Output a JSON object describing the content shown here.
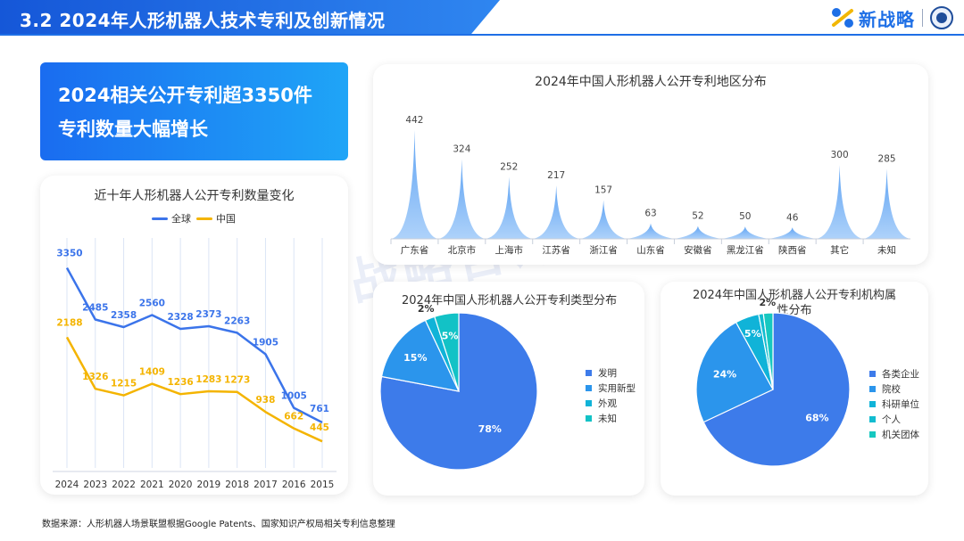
{
  "header": {
    "title": "3.2  2024年人形机器人技术专利及创新情况",
    "logo_text": "新战略"
  },
  "hero": {
    "line1": "2024相关公开专利超3350件",
    "line2": "专利数量大幅增长"
  },
  "watermark": "新战略咨询",
  "source": "数据来源：人形机器人场景联盟根据Google Patents、国家知识产权局相关专利信息整理",
  "colors": {
    "global": "#3b74ea",
    "china": "#f4b400",
    "peak": "#7fb5f5"
  },
  "chart_data": [
    {
      "type": "line",
      "title": "近十年人形机器人公开专利数量变化",
      "categories": [
        "2024",
        "2023",
        "2022",
        "2021",
        "2020",
        "2019",
        "2018",
        "2017",
        "2016",
        "2015"
      ],
      "series": [
        {
          "name": "全球",
          "values": [
            3350,
            2485,
            2358,
            2560,
            2328,
            2373,
            2263,
            1905,
            1005,
            761
          ]
        },
        {
          "name": "中国",
          "values": [
            2188,
            1326,
            1215,
            1409,
            1236,
            1283,
            1273,
            938,
            662,
            445
          ]
        }
      ],
      "ylim": [
        0,
        4000
      ],
      "legend": "top"
    },
    {
      "type": "area",
      "title": "2024年中国人形机器人公开专利地区分布",
      "categories": [
        "广东省",
        "北京市",
        "上海市",
        "江苏省",
        "浙江省",
        "山东省",
        "安徽省",
        "黑龙江省",
        "陕西省",
        "其它",
        "未知"
      ],
      "values": [
        442,
        324,
        252,
        217,
        157,
        63,
        52,
        50,
        46,
        300,
        285
      ],
      "ylim": [
        0,
        500
      ]
    },
    {
      "type": "pie",
      "title": "2024年中国人形机器人公开专利类型分布",
      "labels": [
        "发明",
        "实用新型",
        "外观",
        "未知"
      ],
      "values": [
        78,
        15,
        2,
        5
      ],
      "display": [
        "78%",
        "15%",
        "2%",
        "5%"
      ],
      "colors": [
        "#3d7bea",
        "#2b95ec",
        "#10b3d8",
        "#12c2c6"
      ],
      "legend": "right"
    },
    {
      "type": "pie",
      "title_line1": "2024年中国人形机器人公开专利机构属",
      "title_line2": "性分布",
      "labels": [
        "各类企业",
        "院校",
        "科研单位",
        "个人",
        "机关团体"
      ],
      "values": [
        68,
        24,
        5,
        1,
        2
      ],
      "display": [
        "68%",
        "24%",
        "5%",
        "",
        "2%"
      ],
      "colors": [
        "#3d7bea",
        "#2b95ec",
        "#10b3d8",
        "#12bcd0",
        "#16c8c0"
      ],
      "legend": "right"
    }
  ]
}
